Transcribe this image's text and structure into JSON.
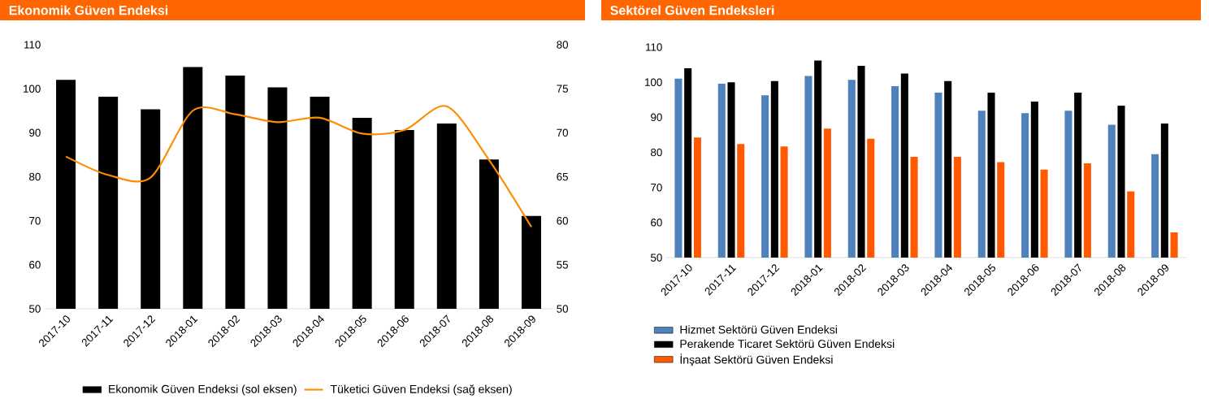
{
  "chart_data": [
    {
      "type": "bar",
      "title": "Ekonomik Güven Endeksi",
      "categories": [
        "2017-10",
        "2017-11",
        "2017-12",
        "2018-01",
        "2018-02",
        "2018-03",
        "2018-04",
        "2018-05",
        "2018-06",
        "2018-07",
        "2018-08",
        "2018-09"
      ],
      "series": [
        {
          "name": "Ekonomik Güven Endeksi (sol eksen)",
          "color": "#000000",
          "values": [
            102.0,
            98.2,
            95.3,
            104.9,
            103.0,
            100.3,
            98.2,
            93.4,
            90.6,
            92.1,
            83.9,
            71.1
          ]
        },
        {
          "name": "Tüketici Güven Endeksi (sağ eksen)",
          "type": "line",
          "axis": "y2",
          "color": "#ff8c00",
          "values": [
            67.3,
            65.2,
            64.9,
            72.5,
            72.1,
            71.2,
            71.7,
            69.9,
            70.3,
            73.0,
            66.9,
            59.3
          ]
        }
      ],
      "ylim": [
        50,
        110
      ],
      "yticks": [
        50,
        60,
        70,
        80,
        90,
        100,
        110
      ],
      "y2lim": [
        50,
        80
      ],
      "y2ticks": [
        50,
        55,
        60,
        65,
        70,
        75,
        80
      ],
      "legend": "bottom"
    },
    {
      "type": "bar",
      "title": "Sektörel Güven Endeksleri",
      "categories": [
        "2017-10",
        "2017-11",
        "2017-12",
        "2018-01",
        "2018-02",
        "2018-03",
        "2018-04",
        "2018-05",
        "2018-06",
        "2018-07",
        "2018-08",
        "2018-09"
      ],
      "series": [
        {
          "name": "Hizmet Sektörü Güven Endeksi",
          "color": "#4f81bd",
          "values": [
            101.0,
            99.6,
            96.3,
            101.8,
            100.7,
            98.9,
            97.0,
            91.9,
            91.2,
            91.9,
            87.9,
            79.5
          ]
        },
        {
          "name": "Perakende Ticaret Sektörü Güven Endeksi",
          "color": "#000000",
          "values": [
            104.0,
            100.0,
            100.3,
            106.2,
            104.7,
            102.5,
            100.3,
            97.0,
            94.5,
            97.0,
            93.3,
            88.2
          ]
        },
        {
          "name": "İnşaat Sektörü Güven Endeksi",
          "color": "#ff5a00",
          "values": [
            84.2,
            82.4,
            81.7,
            86.8,
            83.9,
            78.7,
            78.7,
            77.2,
            75.1,
            76.9,
            68.9,
            57.2
          ]
        }
      ],
      "ylim": [
        50,
        110
      ],
      "yticks": [
        50,
        60,
        70,
        80,
        90,
        100,
        110
      ],
      "legend": "bottom left"
    }
  ]
}
